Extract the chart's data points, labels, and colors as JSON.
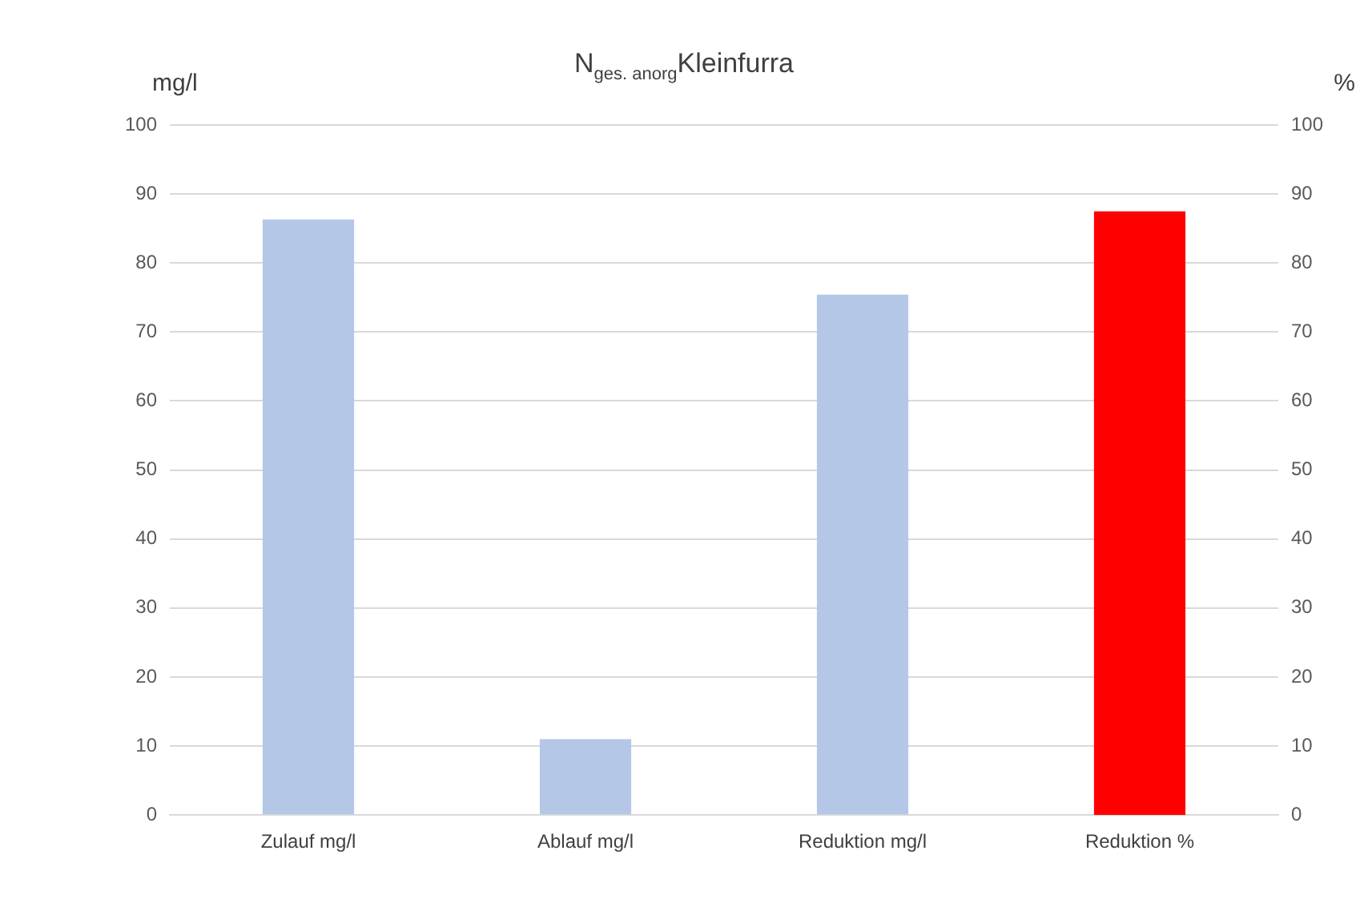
{
  "chart_data": {
    "type": "bar",
    "title": "N$_{ges. anorg}$Kleinfurra",
    "ylabel": "mg/l",
    "y2label": "%",
    "categories": [
      "Zulauf mg/l",
      "Ablauf mg/l",
      "Reduktion mg/l",
      "Reduktion %"
    ],
    "series": [
      {
        "color": "#b4c7e7",
        "values": [
          86.3,
          11,
          75.4,
          null
        ]
      },
      {
        "color": "#ff0000",
        "values": [
          null,
          null,
          null,
          87.5
        ],
        "axis": "y2"
      }
    ],
    "ylim": [
      0,
      100
    ],
    "yticks": [
      0,
      10,
      20,
      30,
      40,
      50,
      60,
      70,
      80,
      90,
      100
    ],
    "y2lim": [
      0,
      100
    ],
    "y2ticks": [
      0,
      10,
      20,
      30,
      40,
      50,
      60,
      70,
      80,
      90,
      100
    ],
    "grid": "y",
    "legend": false
  }
}
